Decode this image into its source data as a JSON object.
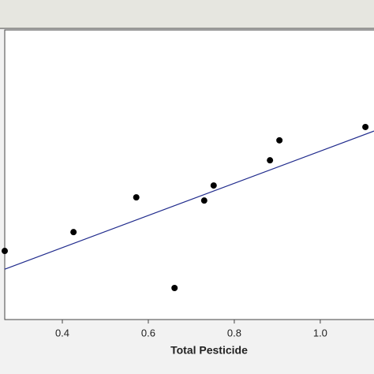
{
  "chart_data": {
    "type": "scatter",
    "xlabel": "Total Pesticide",
    "x": [
      0.266,
      0.426,
      0.572,
      0.661,
      0.73,
      0.752,
      0.883,
      0.905,
      1.105
    ],
    "y": [
      23.7,
      30.2,
      42.2,
      10.9,
      41.1,
      46.3,
      55.0,
      61.9,
      66.5
    ],
    "color": "#000000",
    "fit": {
      "x": [
        0.266,
        1.125
      ],
      "y": [
        17.4,
        65.1
      ],
      "color": "#1f2a8c"
    },
    "xlim": [
      0.266,
      1.125
    ],
    "ylim": [
      0,
      100
    ],
    "xticks": [
      0.4,
      0.6,
      0.8,
      {
        "value": 1,
        "label": "1.0"
      }
    ]
  }
}
